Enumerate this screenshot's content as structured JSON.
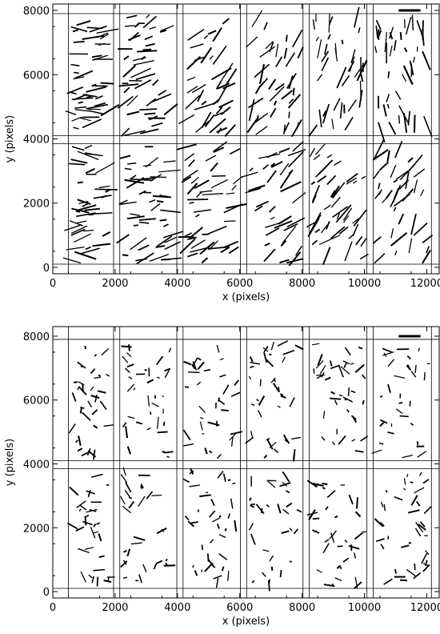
{
  "chart_data": [
    {
      "type": "scatter",
      "panel": "top",
      "xlabel": "x (pixels)",
      "ylabel": "y (pixels)",
      "xlim": [
        0,
        12400
      ],
      "ylim": [
        -200,
        8200
      ],
      "xticks": [
        0,
        2000,
        4000,
        6000,
        8000,
        10000,
        12000
      ],
      "yticks": [
        0,
        2000,
        4000,
        6000,
        8000
      ],
      "grid_x": [
        500,
        1950,
        2150,
        3980,
        4180,
        6020,
        6220,
        8030,
        8230,
        10080,
        10280,
        12150
      ],
      "grid_y": [
        100,
        3850,
        4100,
        7900
      ],
      "scale_bar": {
        "x": [
          11100,
          11800
        ],
        "y": 8000
      },
      "seed": 7,
      "density": 1.25,
      "length": 1.3
    },
    {
      "type": "scatter",
      "panel": "bottom",
      "xlabel": "x (pixels)",
      "ylabel": "y (pixels)",
      "xlim": [
        0,
        12400
      ],
      "ylim": [
        -200,
        8300
      ],
      "xticks": [
        0,
        2000,
        4000,
        6000,
        8000,
        10000,
        12000
      ],
      "yticks": [
        0,
        2000,
        4000,
        6000,
        8000
      ],
      "grid_x": [
        500,
        1950,
        2150,
        3980,
        4180,
        6020,
        6220,
        8030,
        8230,
        10080,
        10280,
        12150
      ],
      "grid_y": [
        100,
        3850,
        4100,
        7900
      ],
      "scale_bar": {
        "x": [
          11100,
          11800
        ],
        "y": 8000
      },
      "seed": 23,
      "density": 1.0,
      "length": 0.7
    }
  ]
}
